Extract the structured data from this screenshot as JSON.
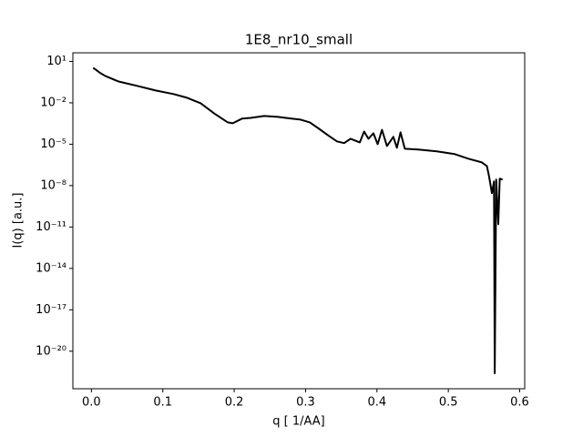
{
  "chart_data": {
    "type": "line",
    "title": "1E8_nr10_small",
    "x_label": "q [ 1/AA]",
    "y_label": "I(q) [a.u.]",
    "y_scale": "log",
    "xlim": [
      -0.026,
      0.607
    ],
    "ylim": [
      1.9e-23,
      42
    ],
    "xticks": [
      {
        "value": 0,
        "label": "0.0"
      },
      0.1,
      0.2,
      0.3,
      0.4,
      0.5,
      0.6
    ],
    "yticks": [
      {
        "value": 10,
        "label": "10¹"
      },
      {
        "value": 0.01,
        "label": "10⁻²"
      },
      {
        "value": 1e-05,
        "label": "10⁻⁵"
      },
      {
        "value": 1e-08,
        "label": "10⁻⁸"
      },
      {
        "value": 1e-11,
        "label": "10⁻¹¹"
      },
      {
        "value": 1e-14,
        "label": "10⁻¹⁴"
      },
      {
        "value": 1e-17,
        "label": "10⁻¹⁷"
      },
      {
        "value": 1e-20,
        "label": "10⁻²⁰"
      }
    ],
    "series": [
      {
        "color": "#000000",
        "x": [
          0.0025,
          0.0128,
          0.019,
          0.038,
          0.064,
          0.09,
          0.115,
          0.134,
          0.153,
          0.172,
          0.191,
          0.198,
          0.211,
          0.223,
          0.242,
          0.261,
          0.28,
          0.293,
          0.306,
          0.319,
          0.331,
          0.344,
          0.354,
          0.363,
          0.376,
          0.382,
          0.388,
          0.395,
          0.401,
          0.407,
          0.414,
          0.423,
          0.428,
          0.433,
          0.439,
          0.458,
          0.484,
          0.509,
          0.528,
          0.547,
          0.554,
          0.557,
          0.561,
          0.564,
          0.565,
          0.567,
          0.57,
          0.572,
          0.576
        ],
        "values": [
          3.5,
          1.4,
          0.9,
          0.35,
          0.17,
          0.078,
          0.043,
          0.023,
          0.0093,
          0.0017,
          0.00038,
          0.00033,
          0.00071,
          0.00081,
          0.0011,
          0.00095,
          0.00071,
          0.0006,
          0.00038,
          0.00013,
          4.6e-05,
          1.6e-05,
          1.2e-05,
          2.5e-05,
          1.35e-05,
          8.3e-05,
          2.5e-05,
          6.2e-05,
          1e-05,
          0.00011,
          7.4e-06,
          3.4e-05,
          5.5e-06,
          7.2e-05,
          4.7e-06,
          4.1e-06,
          3e-06,
          1.9e-06,
          8.9e-07,
          4.8e-07,
          2.6e-07,
          5e-08,
          2.8e-09,
          2e-08,
          2.5e-22,
          2.7e-08,
          1.6e-11,
          3.2e-08,
          2.7e-08
        ]
      }
    ]
  }
}
